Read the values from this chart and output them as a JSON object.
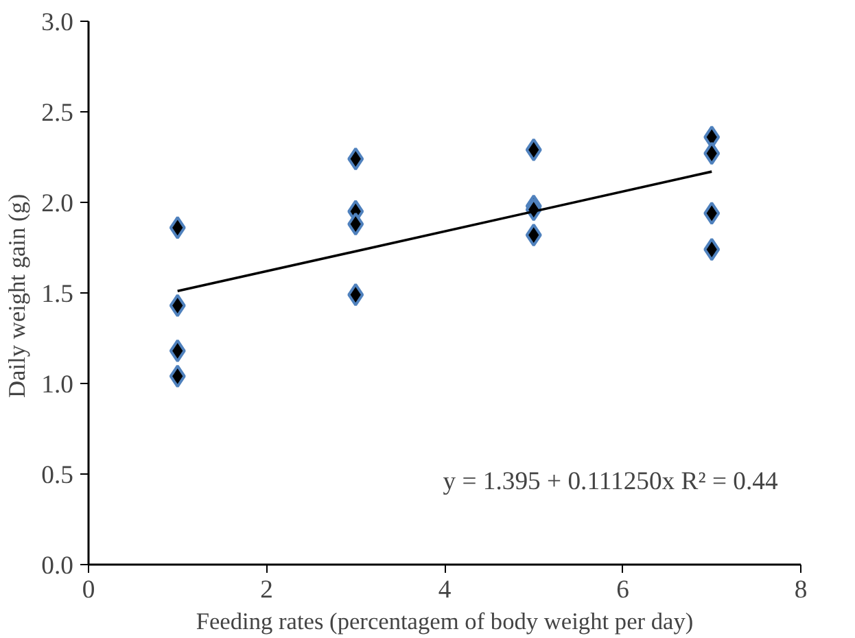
{
  "chart_data": {
    "type": "scatter",
    "xlabel": "Feeding rates (percentagem of body weight per day)",
    "ylabel": "Daily weight gain  (g)",
    "xlim": [
      0,
      8
    ],
    "ylim": [
      0,
      3
    ],
    "xticks": [
      0,
      2,
      4,
      6,
      8
    ],
    "yticks": [
      {
        "value": 0,
        "label": "0.0"
      },
      {
        "value": 0.5,
        "label": "0.5"
      },
      {
        "value": 1,
        "label": "1.0"
      },
      {
        "value": 1.5,
        "label": "1.5"
      },
      {
        "value": 2,
        "label": "2.0"
      },
      {
        "value": 2.5,
        "label": "2.5"
      },
      {
        "value": 3,
        "label": "3.0"
      }
    ],
    "grid": false,
    "series": [
      {
        "marker": "diamond",
        "color": "#000000",
        "x": [
          1,
          1,
          1,
          1,
          3,
          3,
          3,
          3,
          5,
          5,
          5,
          5,
          7,
          7,
          7,
          7
        ],
        "values": [
          1.86,
          1.43,
          1.18,
          1.04,
          2.24,
          1.95,
          1.88,
          1.49,
          2.29,
          1.98,
          1.96,
          1.82,
          2.36,
          2.27,
          1.94,
          1.74
        ]
      },
      {
        "type": "line",
        "color": "#000000",
        "x": [
          1,
          7
        ],
        "values": [
          1.51,
          2.17
        ],
        "line_style": "solid"
      }
    ],
    "annotations": [
      "y = 1.395 + 0.111250x  R² = 0.44"
    ]
  }
}
